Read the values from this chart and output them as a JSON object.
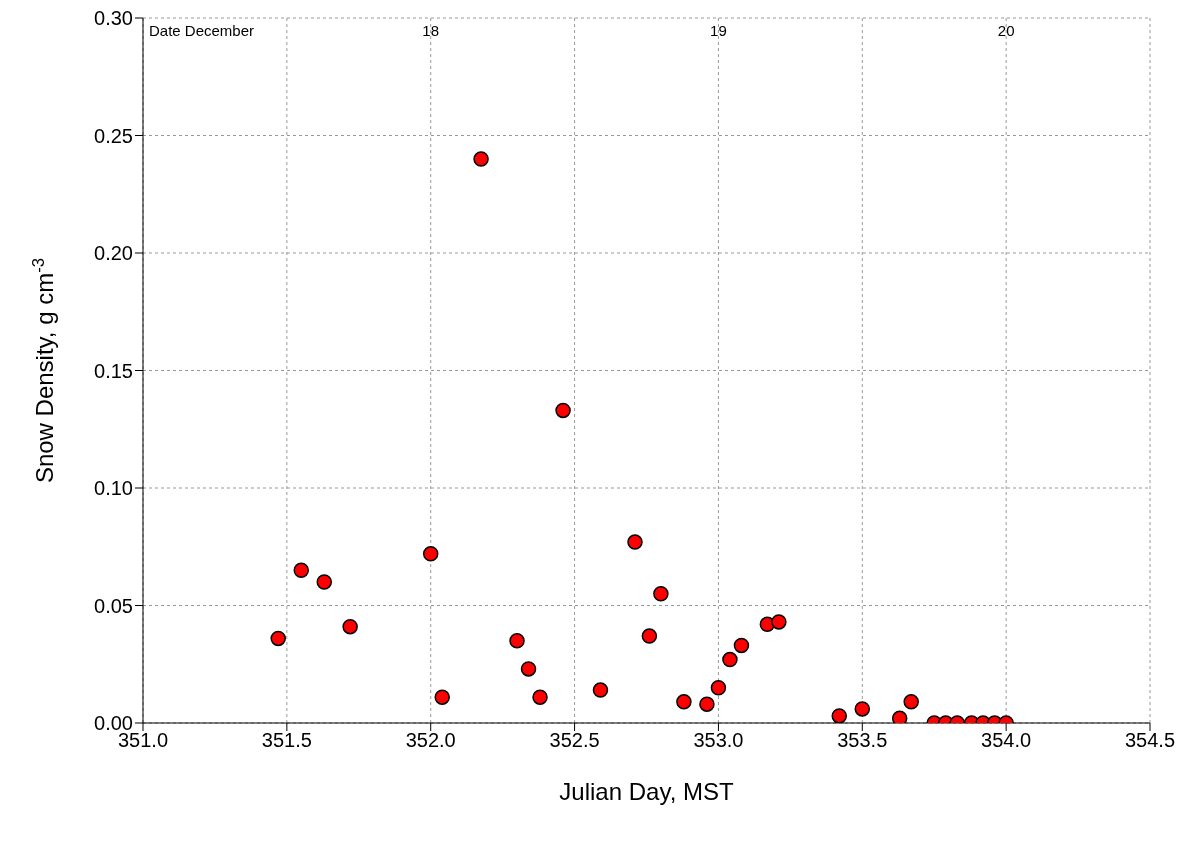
{
  "chart_data": {
    "type": "scatter",
    "xlabel": "Julian Day, MST",
    "ylabel": "Snow Density, g cm$^{-3}$",
    "x2label": "Date December",
    "x": [
      351.47,
      351.55,
      351.63,
      351.72,
      352.0,
      352.04,
      352.175,
      352.3,
      352.34,
      352.38,
      352.46,
      352.59,
      352.71,
      352.76,
      352.8,
      352.88,
      352.96,
      353.0,
      353.04,
      353.08,
      353.17,
      353.21,
      353.42,
      353.5,
      353.63,
      353.67,
      353.75,
      353.79,
      353.83,
      353.88,
      353.92,
      353.96,
      354.0
    ],
    "series": [
      {
        "color": "#ff0000",
        "values": [
          0.036,
          0.065,
          0.06,
          0.041,
          0.072,
          0.011,
          0.24,
          0.035,
          0.023,
          0.011,
          0.133,
          0.014,
          0.077,
          0.037,
          0.055,
          0.009,
          0.008,
          0.015,
          0.027,
          0.033,
          0.042,
          0.043,
          0.003,
          0.006,
          0.002,
          0.009,
          0,
          0,
          0,
          0,
          0,
          0,
          0
        ]
      }
    ],
    "xlim": [
      351.0,
      354.5
    ],
    "xticks": [
      {
        "value": 351,
        "label": "351.0"
      },
      {
        "value": 351.5,
        "label": "351.5"
      },
      {
        "value": 352,
        "label": "352.0"
      },
      {
        "value": 352.5,
        "label": "352.5"
      },
      {
        "value": 353,
        "label": "353.0"
      },
      {
        "value": 353.5,
        "label": "353.5"
      },
      {
        "value": 354,
        "label": "354.0"
      },
      {
        "value": 354.5,
        "label": "354.5"
      }
    ],
    "ylim": [
      0,
      0.3
    ],
    "yticks": [
      {
        "value": 0,
        "label": "0.00"
      },
      {
        "value": 0.05,
        "label": "0.05"
      },
      {
        "value": 0.1,
        "label": "0.10"
      },
      {
        "value": 0.15,
        "label": "0.15"
      },
      {
        "value": 0.2,
        "label": "0.20"
      },
      {
        "value": 0.25,
        "label": "0.25"
      },
      {
        "value": 0.3,
        "label": "0.30"
      }
    ],
    "x2lim": [
      17.0,
      20.5
    ],
    "x2ticks": [
      18,
      19,
      20
    ],
    "grid": true,
    "marker": "circle"
  }
}
